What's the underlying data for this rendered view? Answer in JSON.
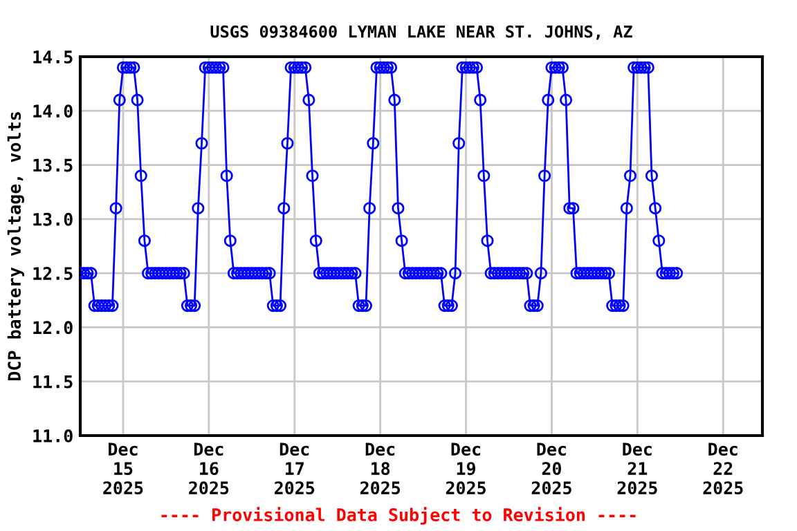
{
  "chart_data": {
    "type": "line",
    "title": "USGS 09384600 LYMAN LAKE NEAR ST. JOHNS, AZ",
    "ylabel": "DCP battery voltage, volts",
    "annotations": [
      "---- Provisional Data Subject to Revision ----"
    ],
    "x": [
      "2025-12-14T12:00",
      "2025-12-14T13:00",
      "2025-12-14T14:00",
      "2025-12-14T15:00",
      "2025-12-14T16:00",
      "2025-12-14T17:00",
      "2025-12-14T18:00",
      "2025-12-14T19:00",
      "2025-12-14T20:00",
      "2025-12-14T21:00",
      "2025-12-14T22:00",
      "2025-12-14T23:00",
      "2025-12-15T00:00",
      "2025-12-15T01:00",
      "2025-12-15T02:00",
      "2025-12-15T03:00",
      "2025-12-15T04:00",
      "2025-12-15T05:00",
      "2025-12-15T06:00",
      "2025-12-15T07:00",
      "2025-12-15T08:00",
      "2025-12-15T09:00",
      "2025-12-15T10:00",
      "2025-12-15T11:00",
      "2025-12-15T12:00",
      "2025-12-15T13:00",
      "2025-12-15T14:00",
      "2025-12-15T15:00",
      "2025-12-15T16:00",
      "2025-12-15T17:00",
      "2025-12-15T18:00",
      "2025-12-15T19:00",
      "2025-12-15T20:00",
      "2025-12-15T21:00",
      "2025-12-15T22:00",
      "2025-12-15T23:00",
      "2025-12-16T00:00",
      "2025-12-16T01:00",
      "2025-12-16T02:00",
      "2025-12-16T03:00",
      "2025-12-16T04:00",
      "2025-12-16T05:00",
      "2025-12-16T06:00",
      "2025-12-16T07:00",
      "2025-12-16T08:00",
      "2025-12-16T09:00",
      "2025-12-16T10:00",
      "2025-12-16T11:00",
      "2025-12-16T12:00",
      "2025-12-16T13:00",
      "2025-12-16T14:00",
      "2025-12-16T15:00",
      "2025-12-16T16:00",
      "2025-12-16T17:00",
      "2025-12-16T18:00",
      "2025-12-16T19:00",
      "2025-12-16T20:00",
      "2025-12-16T21:00",
      "2025-12-16T22:00",
      "2025-12-16T23:00",
      "2025-12-17T00:00",
      "2025-12-17T01:00",
      "2025-12-17T02:00",
      "2025-12-17T03:00",
      "2025-12-17T04:00",
      "2025-12-17T05:00",
      "2025-12-17T06:00",
      "2025-12-17T07:00",
      "2025-12-17T08:00",
      "2025-12-17T09:00",
      "2025-12-17T10:00",
      "2025-12-17T11:00",
      "2025-12-17T12:00",
      "2025-12-17T13:00",
      "2025-12-17T14:00",
      "2025-12-17T15:00",
      "2025-12-17T16:00",
      "2025-12-17T17:00",
      "2025-12-17T18:00",
      "2025-12-17T19:00",
      "2025-12-17T20:00",
      "2025-12-17T21:00",
      "2025-12-17T22:00",
      "2025-12-17T23:00",
      "2025-12-18T00:00",
      "2025-12-18T01:00",
      "2025-12-18T02:00",
      "2025-12-18T03:00",
      "2025-12-18T04:00",
      "2025-12-18T05:00",
      "2025-12-18T06:00",
      "2025-12-18T07:00",
      "2025-12-18T08:00",
      "2025-12-18T09:00",
      "2025-12-18T10:00",
      "2025-12-18T11:00",
      "2025-12-18T12:00",
      "2025-12-18T13:00",
      "2025-12-18T14:00",
      "2025-12-18T15:00",
      "2025-12-18T16:00",
      "2025-12-18T17:00",
      "2025-12-18T18:00",
      "2025-12-18T19:00",
      "2025-12-18T20:00",
      "2025-12-18T21:00",
      "2025-12-18T22:00",
      "2025-12-18T23:00",
      "2025-12-19T00:00",
      "2025-12-19T01:00",
      "2025-12-19T02:00",
      "2025-12-19T03:00",
      "2025-12-19T04:00",
      "2025-12-19T05:00",
      "2025-12-19T06:00",
      "2025-12-19T07:00",
      "2025-12-19T08:00",
      "2025-12-19T09:00",
      "2025-12-19T10:00",
      "2025-12-19T11:00",
      "2025-12-19T12:00",
      "2025-12-19T13:00",
      "2025-12-19T14:00",
      "2025-12-19T15:00",
      "2025-12-19T16:00",
      "2025-12-19T17:00",
      "2025-12-19T18:00",
      "2025-12-19T19:00",
      "2025-12-19T20:00",
      "2025-12-19T21:00",
      "2025-12-19T22:00",
      "2025-12-19T23:00",
      "2025-12-20T00:00",
      "2025-12-20T01:00",
      "2025-12-20T02:00",
      "2025-12-20T03:00",
      "2025-12-20T04:00",
      "2025-12-20T05:00",
      "2025-12-20T06:00",
      "2025-12-20T07:00",
      "2025-12-20T08:00",
      "2025-12-20T09:00",
      "2025-12-20T10:00",
      "2025-12-20T11:00",
      "2025-12-20T12:00",
      "2025-12-20T13:00",
      "2025-12-20T14:00",
      "2025-12-20T15:00",
      "2025-12-20T16:00",
      "2025-12-20T17:00",
      "2025-12-20T18:00",
      "2025-12-20T19:00",
      "2025-12-20T20:00",
      "2025-12-20T21:00",
      "2025-12-20T22:00",
      "2025-12-20T23:00",
      "2025-12-21T00:00",
      "2025-12-21T01:00",
      "2025-12-21T02:00",
      "2025-12-21T03:00",
      "2025-12-21T04:00",
      "2025-12-21T05:00",
      "2025-12-21T06:00",
      "2025-12-21T07:00",
      "2025-12-21T08:00",
      "2025-12-21T09:00",
      "2025-12-21T10:00",
      "2025-12-21T11:00"
    ],
    "series": [
      {
        "color": "#0000ff",
        "values": [
          12.5,
          12.5,
          12.5,
          12.5,
          12.2,
          12.2,
          12.2,
          12.2,
          12.2,
          12.2,
          13.1,
          14.1,
          14.4,
          14.4,
          14.4,
          14.4,
          14.1,
          13.4,
          12.8,
          12.5,
          12.5,
          12.5,
          12.5,
          12.5,
          12.5,
          12.5,
          12.5,
          12.5,
          12.5,
          12.5,
          12.2,
          12.2,
          12.2,
          13.1,
          13.7,
          14.4,
          14.4,
          14.4,
          14.4,
          14.4,
          14.4,
          13.4,
          12.8,
          12.5,
          12.5,
          12.5,
          12.5,
          12.5,
          12.5,
          12.5,
          12.5,
          12.5,
          12.5,
          12.5,
          12.2,
          12.2,
          12.2,
          13.1,
          13.7,
          14.4,
          14.4,
          14.4,
          14.4,
          14.4,
          14.1,
          13.4,
          12.8,
          12.5,
          12.5,
          12.5,
          12.5,
          12.5,
          12.5,
          12.5,
          12.5,
          12.5,
          12.5,
          12.5,
          12.2,
          12.2,
          12.2,
          13.1,
          13.7,
          14.4,
          14.4,
          14.4,
          14.4,
          14.4,
          14.1,
          13.1,
          12.8,
          12.5,
          12.5,
          12.5,
          12.5,
          12.5,
          12.5,
          12.5,
          12.5,
          12.5,
          12.5,
          12.5,
          12.2,
          12.2,
          12.2,
          12.5,
          13.7,
          14.4,
          14.4,
          14.4,
          14.4,
          14.4,
          14.1,
          13.4,
          12.8,
          12.5,
          12.5,
          12.5,
          12.5,
          12.5,
          12.5,
          12.5,
          12.5,
          12.5,
          12.5,
          12.5,
          12.2,
          12.2,
          12.2,
          12.5,
          13.4,
          14.1,
          14.4,
          14.4,
          14.4,
          14.4,
          14.1,
          13.1,
          13.1,
          12.5,
          12.5,
          12.5,
          12.5,
          12.5,
          12.5,
          12.5,
          12.5,
          12.5,
          12.5,
          12.2,
          12.2,
          12.2,
          12.2,
          13.1,
          13.4,
          14.4,
          14.4,
          14.4,
          14.4,
          14.4,
          13.4,
          13.1,
          12.8,
          12.5,
          12.5,
          12.5,
          12.5,
          12.5
        ]
      }
    ],
    "xlim": [
      "2025-12-14T12:00",
      "2025-12-22T11:00"
    ],
    "xticks": [
      {
        "value": "2025-12-15",
        "label": "Dec\n15\n2025"
      },
      {
        "value": "2025-12-16",
        "label": "Dec\n16\n2025"
      },
      {
        "value": "2025-12-17",
        "label": "Dec\n17\n2025"
      },
      {
        "value": "2025-12-18",
        "label": "Dec\n18\n2025"
      },
      {
        "value": "2025-12-19",
        "label": "Dec\n19\n2025"
      },
      {
        "value": "2025-12-20",
        "label": "Dec\n20\n2025"
      },
      {
        "value": "2025-12-21",
        "label": "Dec\n21\n2025"
      },
      {
        "value": "2025-12-22",
        "label": "Dec\n22\n2025"
      }
    ],
    "ylim": [
      11.0,
      14.5
    ],
    "yticks": [
      {
        "value": 11.0,
        "label": "11.0"
      },
      {
        "value": 11.5,
        "label": "11.5"
      },
      {
        "value": 12.0,
        "label": "12.0"
      },
      {
        "value": 12.5,
        "label": "12.5"
      },
      {
        "value": 13.0,
        "label": "13.0"
      },
      {
        "value": 13.5,
        "label": "13.5"
      },
      {
        "value": 14.0,
        "label": "14.0"
      },
      {
        "value": 14.5,
        "label": "14.5"
      }
    ],
    "grid": true,
    "marker": "circle",
    "line_style": "solid"
  }
}
